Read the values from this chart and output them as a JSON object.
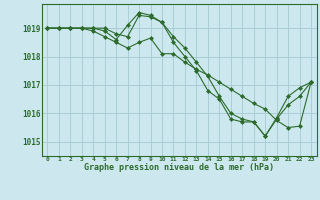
{
  "title": "Graphe pression niveau de la mer (hPa)",
  "background_color": "#cce8ee",
  "grid_color": "#aacdd5",
  "line_color": "#2d6b2d",
  "xlim": [
    -0.5,
    23.5
  ],
  "ylim": [
    1014.5,
    1019.85
  ],
  "yticks": [
    1015,
    1016,
    1017,
    1018,
    1019
  ],
  "xticks": [
    0,
    1,
    2,
    3,
    4,
    5,
    6,
    7,
    8,
    9,
    10,
    11,
    12,
    13,
    14,
    15,
    16,
    17,
    18,
    19,
    20,
    21,
    22,
    23
  ],
  "series": [
    [
      1019.0,
      1019.0,
      1019.0,
      1019.0,
      1019.0,
      1019.0,
      1018.8,
      1018.7,
      1019.45,
      1019.4,
      1019.2,
      1018.7,
      1018.3,
      1017.8,
      1017.3,
      1016.6,
      1016.0,
      1015.8,
      1015.7,
      1015.2,
      1015.8,
      1016.3,
      1016.6,
      1017.1
    ],
    [
      1019.0,
      1019.0,
      1019.0,
      1019.0,
      1019.0,
      1018.9,
      1018.6,
      1019.1,
      1019.55,
      1019.45,
      1019.2,
      1018.5,
      1018.0,
      1017.5,
      1016.8,
      1016.5,
      1015.8,
      1015.7,
      1015.7,
      1015.2,
      1015.85,
      1016.6,
      1016.9,
      1017.1
    ],
    [
      1019.0,
      1019.0,
      1019.0,
      1019.0,
      1018.9,
      1018.7,
      1018.5,
      1018.3,
      1018.5,
      1018.65,
      1018.1,
      1018.1,
      1017.8,
      1017.55,
      1017.35,
      1017.1,
      1016.85,
      1016.6,
      1016.35,
      1016.15,
      1015.75,
      1015.5,
      1015.55,
      1017.1
    ]
  ]
}
